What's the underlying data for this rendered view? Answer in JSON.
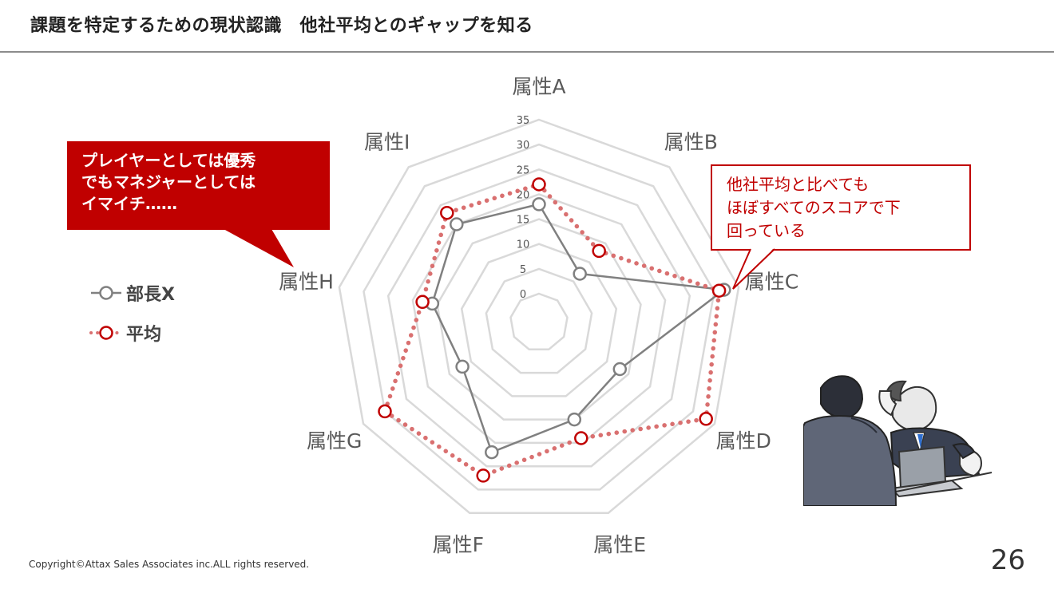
{
  "slide": {
    "title": "課題を特定するための現状認識　他社平均とのギャップを知る",
    "footer_copyright": "Copyright©Attax Sales Associates inc.ALL rights reserved.",
    "page_number": "26"
  },
  "callouts": {
    "left_lines": [
      "プレイヤーとしては優秀",
      "でもマネジャーとしては",
      "イマイチ……"
    ],
    "right_lines": [
      "他社平均と比べても",
      "ほぼすべてのスコアで下",
      "回っている"
    ]
  },
  "colors": {
    "accent_red": "#c00000",
    "boss_line": "#808080",
    "avg_dots": "#d97070",
    "grid": "#d9d9d9"
  },
  "chart_data": {
    "type": "radar",
    "categories": [
      "属性A",
      "属性B",
      "属性C",
      "属性D",
      "属性E",
      "属性F",
      "属性G",
      "属性H",
      "属性I"
    ],
    "ticks": [
      0,
      5,
      10,
      15,
      20,
      25,
      30,
      35
    ],
    "rlim": [
      0,
      35
    ],
    "legend_position": "left",
    "series": [
      {
        "name": "部長X",
        "values": [
          18,
          7,
          32,
          13,
          15,
          22,
          12,
          16,
          20
        ]
      },
      {
        "name": "平均",
        "values": [
          22,
          13,
          31,
          33,
          19,
          27,
          30,
          18,
          23
        ]
      }
    ]
  }
}
